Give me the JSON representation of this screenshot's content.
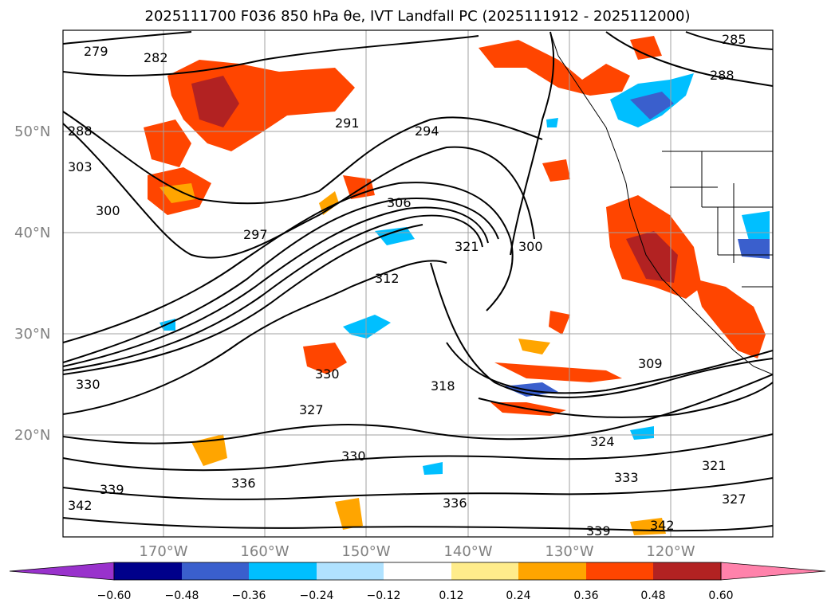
{
  "title": "2025111700 F036 850 hPa θe, IVT Landfall PC (2025111912 - 2025112000)",
  "lat_labels": [
    "50°N",
    "40°N",
    "30°N",
    "20°N"
  ],
  "lon_labels": [
    "170°W",
    "160°W",
    "150°W",
    "140°W",
    "130°W",
    "120°W"
  ],
  "colorbar": {
    "ticks": [
      "−0.60",
      "−0.48",
      "−0.36",
      "−0.24",
      "−0.12",
      "0.12",
      "0.24",
      "0.36",
      "0.48",
      "0.60"
    ],
    "colors": [
      "#9932CC",
      "#00008B",
      "#3A5FCD",
      "#00BFFF",
      "#B0E2FF",
      "#FFFFFF",
      "#FFEC8B",
      "#FFA500",
      "#FF4500",
      "#B22222",
      "#FF82AB"
    ]
  },
  "contour_labels": [
    {
      "text": "279"
    },
    {
      "text": "282"
    },
    {
      "text": "288"
    },
    {
      "text": "291"
    },
    {
      "text": "294"
    },
    {
      "text": "303"
    },
    {
      "text": "300"
    },
    {
      "text": "297"
    },
    {
      "text": "306"
    },
    {
      "text": "321"
    },
    {
      "text": "300"
    },
    {
      "text": "312"
    },
    {
      "text": "318"
    },
    {
      "text": "309"
    },
    {
      "text": "330"
    },
    {
      "text": "327"
    },
    {
      "text": "330"
    },
    {
      "text": "336"
    },
    {
      "text": "339"
    },
    {
      "text": "342"
    },
    {
      "text": "333"
    },
    {
      "text": "321"
    },
    {
      "text": "327"
    },
    {
      "text": "285"
    },
    {
      "text": "288"
    },
    {
      "text": "324"
    },
    {
      "text": "339"
    },
    {
      "text": "342"
    },
    {
      "text": "336"
    },
    {
      "text": "330"
    }
  ],
  "colors": {
    "frame": "#000000",
    "grid": "#a0a0a0",
    "contour": "#000000"
  }
}
